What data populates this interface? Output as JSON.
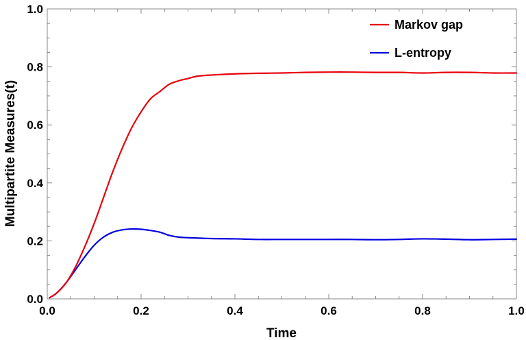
{
  "chart_data": {
    "type": "line",
    "xlabel": "Time",
    "ylabel": "Multipartite Measures(t)",
    "xlim": [
      0,
      1
    ],
    "ylim": [
      0,
      1
    ],
    "xticks": [
      0.0,
      0.2,
      0.4,
      0.6,
      0.8,
      1.0
    ],
    "yticks": [
      0.0,
      0.2,
      0.4,
      0.6,
      0.8,
      1.0
    ],
    "xtick_labels": [
      "0.0",
      "0.2",
      "0.4",
      "0.6",
      "0.8",
      "1.0"
    ],
    "ytick_labels": [
      "0.0",
      "0.2",
      "0.4",
      "0.6",
      "0.8",
      "1.0"
    ],
    "grid": false,
    "legend_position": "top-right",
    "series": [
      {
        "name": "Markov gap",
        "color": "#e8000b",
        "x": [
          0.005,
          0.02,
          0.04,
          0.06,
          0.08,
          0.1,
          0.12,
          0.14,
          0.16,
          0.18,
          0.2,
          0.22,
          0.24,
          0.26,
          0.28,
          0.3,
          0.32,
          0.35,
          0.4,
          0.45,
          0.5,
          0.55,
          0.6,
          0.65,
          0.7,
          0.75,
          0.8,
          0.85,
          0.9,
          0.95,
          1.0
        ],
        "y": [
          0.004,
          0.02,
          0.055,
          0.11,
          0.18,
          0.26,
          0.35,
          0.44,
          0.52,
          0.59,
          0.645,
          0.69,
          0.715,
          0.74,
          0.752,
          0.76,
          0.768,
          0.772,
          0.776,
          0.778,
          0.779,
          0.781,
          0.782,
          0.782,
          0.781,
          0.781,
          0.779,
          0.781,
          0.781,
          0.779,
          0.779
        ]
      },
      {
        "name": "L-entropy",
        "color": "#0000e0",
        "x": [
          0.005,
          0.02,
          0.04,
          0.06,
          0.08,
          0.1,
          0.12,
          0.14,
          0.16,
          0.18,
          0.2,
          0.22,
          0.24,
          0.26,
          0.28,
          0.3,
          0.35,
          0.4,
          0.45,
          0.5,
          0.55,
          0.6,
          0.65,
          0.7,
          0.75,
          0.8,
          0.85,
          0.9,
          0.95,
          1.0
        ],
        "y": [
          0.004,
          0.02,
          0.055,
          0.1,
          0.145,
          0.185,
          0.213,
          0.23,
          0.238,
          0.241,
          0.24,
          0.236,
          0.23,
          0.219,
          0.213,
          0.211,
          0.208,
          0.207,
          0.205,
          0.205,
          0.205,
          0.205,
          0.205,
          0.204,
          0.205,
          0.207,
          0.206,
          0.204,
          0.205,
          0.206
        ]
      }
    ]
  }
}
